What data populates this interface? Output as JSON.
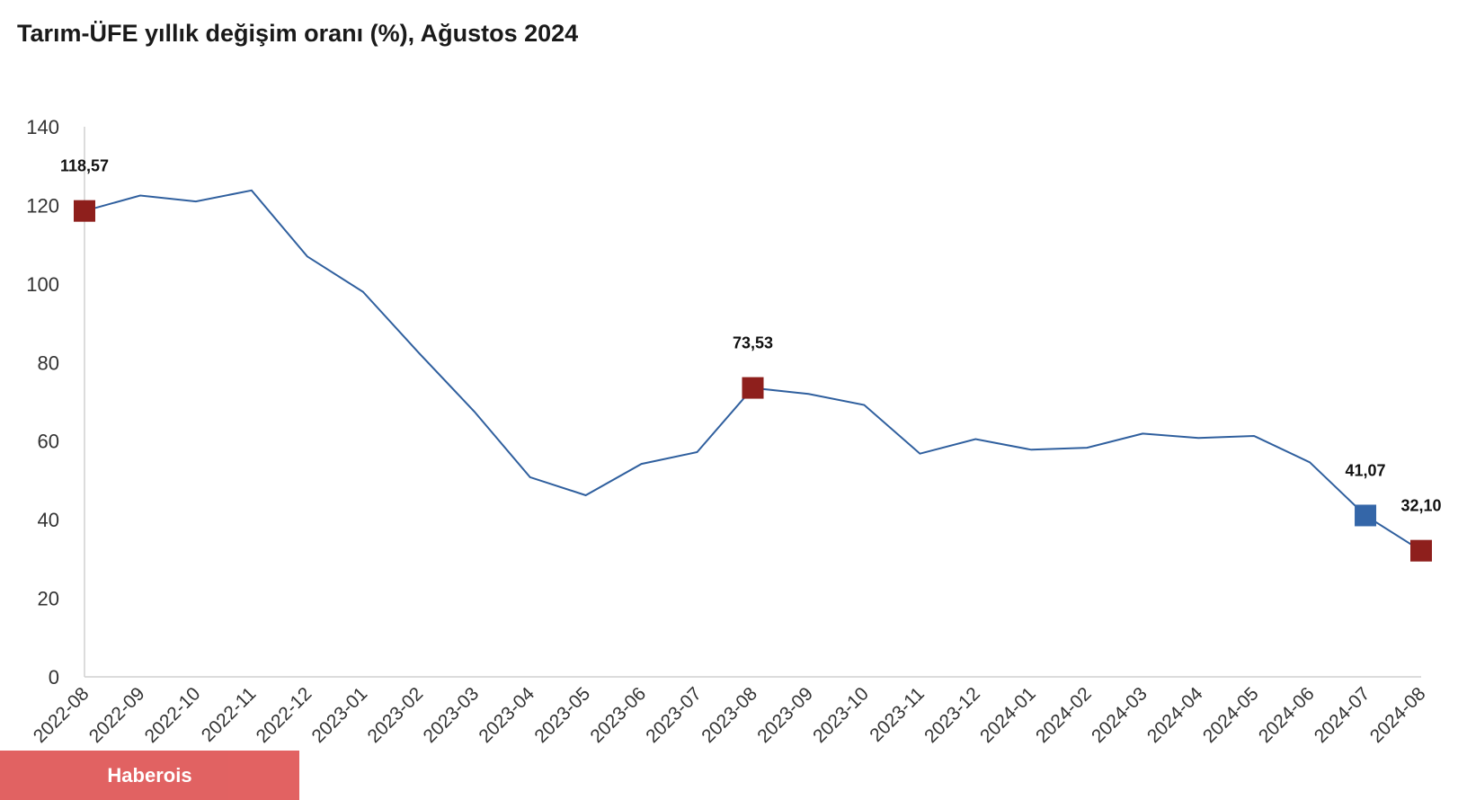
{
  "title": "Tarım-ÜFE yıllık değişim oranı (%), Ağustos 2024",
  "watermark": "Haberois",
  "colors": {
    "line": "#2f5f9e",
    "marker_red": "#8e1f1c",
    "marker_blue": "#3466a8",
    "axis": "#d0d0d0",
    "watermark_bg": "#e05a5a"
  },
  "chart_data": {
    "type": "line",
    "title": "Tarım-ÜFE yıllık değişim oranı (%), Ağustos 2024",
    "xlabel": "",
    "ylabel": "",
    "ylim": [
      0,
      140
    ],
    "yticks": [
      0,
      20,
      40,
      60,
      80,
      100,
      120,
      140
    ],
    "grid": false,
    "categories": [
      "2022-08",
      "2022-09",
      "2022-10",
      "2022-11",
      "2022-12",
      "2023-01",
      "2023-02",
      "2023-03",
      "2023-04",
      "2023-05",
      "2023-06",
      "2023-07",
      "2023-08",
      "2023-09",
      "2023-10",
      "2023-11",
      "2023-12",
      "2024-01",
      "2024-02",
      "2024-03",
      "2024-04",
      "2024-05",
      "2024-06",
      "2024-07",
      "2024-08"
    ],
    "series": [
      {
        "values": [
          118.57,
          122.5,
          121.0,
          123.8,
          107.0,
          98.0,
          82.5,
          67.5,
          50.8,
          46.2,
          54.2,
          57.2,
          73.53,
          72.0,
          69.2,
          56.8,
          60.5,
          57.8,
          58.3,
          61.9,
          60.8,
          61.3,
          54.6,
          41.07,
          32.1
        ]
      }
    ],
    "markers": [
      {
        "index": 0,
        "label": "118,57",
        "color": "red"
      },
      {
        "index": 12,
        "label": "73,53",
        "color": "red"
      },
      {
        "index": 23,
        "label": "41,07",
        "color": "blue"
      },
      {
        "index": 24,
        "label": "32,10",
        "color": "red"
      }
    ]
  }
}
